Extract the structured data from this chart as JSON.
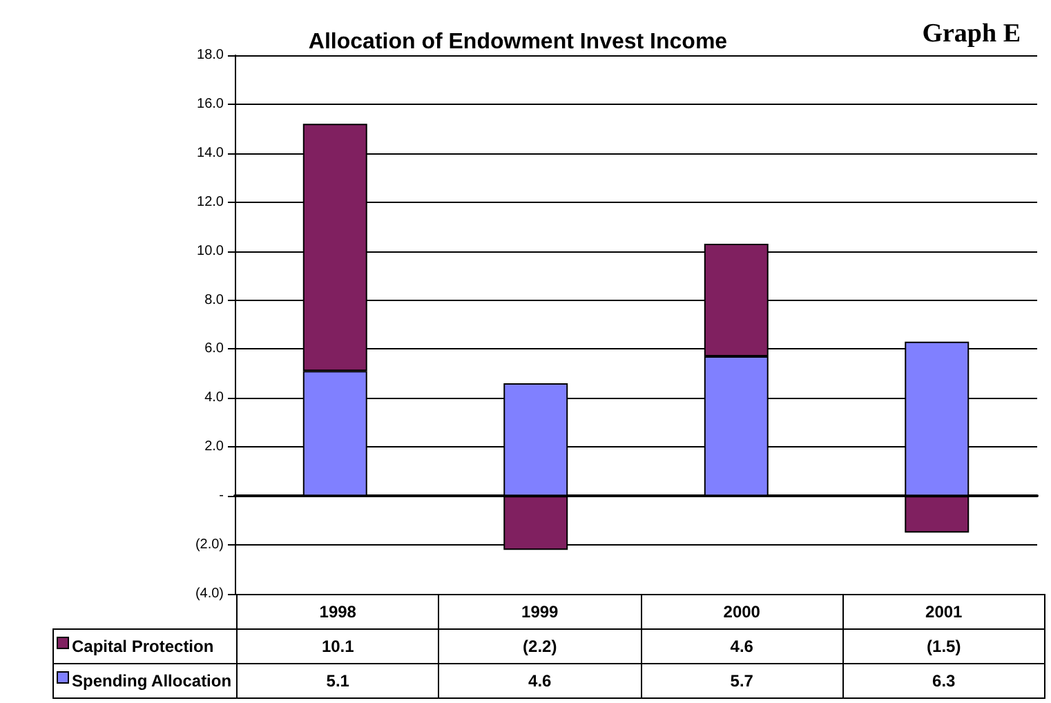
{
  "chart_data": {
    "type": "bar",
    "title": "Allocation of Endowment Invest Income",
    "annotations": [
      "Graph E"
    ],
    "categories": [
      "1998",
      "1999",
      "2000",
      "2001"
    ],
    "stacked": true,
    "series": [
      {
        "name": "Spending Allocation",
        "color": "#8080ff",
        "values": [
          5.1,
          4.6,
          5.7,
          6.3
        ],
        "value_labels": [
          "5.1",
          "4.6",
          "5.7",
          "6.3"
        ]
      },
      {
        "name": "Capital Protection",
        "color": "#802060",
        "values": [
          10.1,
          -2.2,
          4.6,
          -1.5
        ],
        "value_labels": [
          "10.1",
          "(2.2)",
          "4.6",
          "(1.5)"
        ]
      }
    ],
    "ylim": [
      -4,
      18
    ],
    "yticks": [
      {
        "value": -4,
        "label": "(4.0)"
      },
      {
        "value": -2,
        "label": "(2.0)"
      },
      {
        "value": 0,
        "label": "-"
      },
      {
        "value": 2,
        "label": "2.0"
      },
      {
        "value": 4,
        "label": "4.0"
      },
      {
        "value": 6,
        "label": "6.0"
      },
      {
        "value": 8,
        "label": "8.0"
      },
      {
        "value": 10,
        "label": "10.0"
      },
      {
        "value": 12,
        "label": "12.0"
      },
      {
        "value": 14,
        "label": "14.0"
      },
      {
        "value": 16,
        "label": "16.0"
      },
      {
        "value": 18,
        "label": "18.0"
      }
    ],
    "grid": "y",
    "legend": "bottom left"
  }
}
